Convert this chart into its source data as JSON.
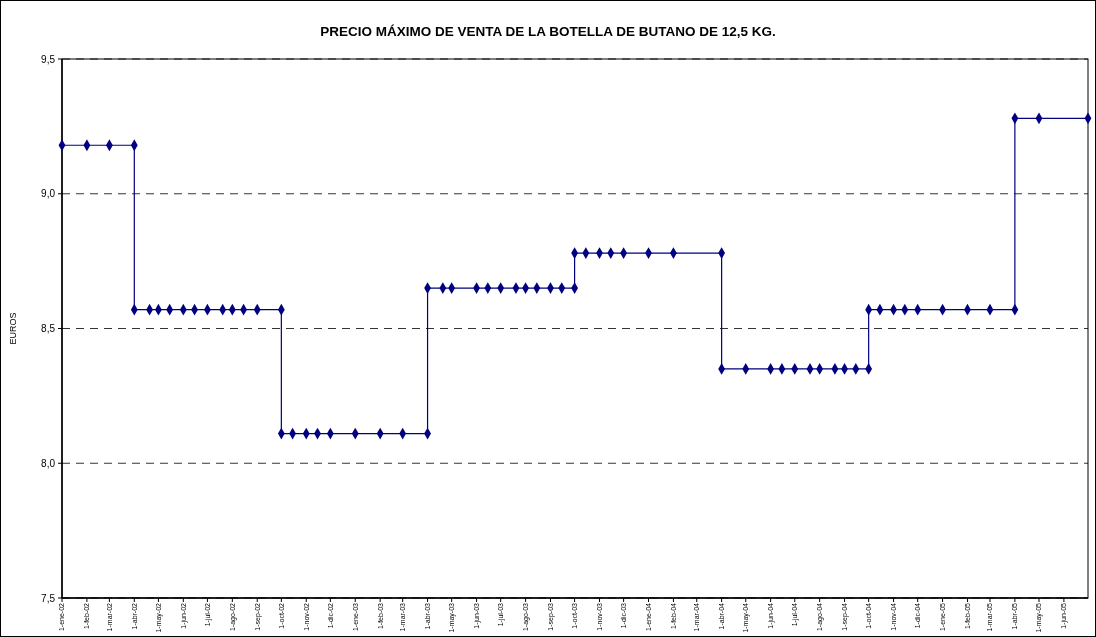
{
  "chart_data": {
    "type": "line",
    "title": "PRECIO MÁXIMO DE VENTA DE LA BOTELLA DE BUTANO DE 12,5 KG.",
    "ylabel": "EUROS",
    "x": [
      "2002-01-01",
      "2002-02-01",
      "2002-03-01",
      "2002-04-01",
      "2002-04-01",
      "2002-04-20",
      "2002-05-01",
      "2002-05-15",
      "2002-06-01",
      "2002-06-15",
      "2002-07-01",
      "2002-07-20",
      "2002-08-01",
      "2002-08-15",
      "2002-09-01",
      "2002-10-01",
      "2002-10-01",
      "2002-10-15",
      "2002-11-01",
      "2002-11-15",
      "2002-12-01",
      "2003-01-01",
      "2003-02-01",
      "2003-03-01",
      "2003-04-01",
      "2003-04-01",
      "2003-04-20",
      "2003-05-01",
      "2003-06-01",
      "2003-06-15",
      "2003-07-01",
      "2003-07-20",
      "2003-08-01",
      "2003-08-15",
      "2003-09-01",
      "2003-09-15",
      "2003-10-01",
      "2003-10-01",
      "2003-10-15",
      "2003-11-01",
      "2003-11-15",
      "2003-12-01",
      "2004-01-01",
      "2004-02-01",
      "2004-04-01",
      "2004-04-01",
      "2004-05-01",
      "2004-06-01",
      "2004-06-15",
      "2004-07-01",
      "2004-07-20",
      "2004-08-01",
      "2004-08-20",
      "2004-09-01",
      "2004-09-15",
      "2004-10-01",
      "2004-10-01",
      "2004-10-15",
      "2004-11-01",
      "2004-11-15",
      "2004-12-01",
      "2005-01-01",
      "2005-02-01",
      "2005-03-01",
      "2005-04-01",
      "2005-04-01",
      "2005-05-01",
      "2005-07-01"
    ],
    "series": [
      {
        "color": "#000080",
        "values": [
          9.18,
          9.18,
          9.18,
          9.18,
          8.57,
          8.57,
          8.57,
          8.57,
          8.57,
          8.57,
          8.57,
          8.57,
          8.57,
          8.57,
          8.57,
          8.57,
          8.11,
          8.11,
          8.11,
          8.11,
          8.11,
          8.11,
          8.11,
          8.11,
          8.11,
          8.65,
          8.65,
          8.65,
          8.65,
          8.65,
          8.65,
          8.65,
          8.65,
          8.65,
          8.65,
          8.65,
          8.65,
          8.78,
          8.78,
          8.78,
          8.78,
          8.78,
          8.78,
          8.78,
          8.78,
          8.35,
          8.35,
          8.35,
          8.35,
          8.35,
          8.35,
          8.35,
          8.35,
          8.35,
          8.35,
          8.35,
          8.57,
          8.57,
          8.57,
          8.57,
          8.57,
          8.57,
          8.57,
          8.57,
          8.57,
          9.28,
          9.28,
          9.28
        ]
      }
    ],
    "xlim": [
      "2002-01-01",
      "2005-07-01"
    ],
    "xticks": [
      {
        "value": "2002-01-01",
        "label": "1-ene-02"
      },
      {
        "value": "2002-02-01",
        "label": "1-feb-02"
      },
      {
        "value": "2002-03-01",
        "label": "1-mar-02"
      },
      {
        "value": "2002-04-01",
        "label": "1-abr-02"
      },
      {
        "value": "2002-05-01",
        "label": "1-may-02"
      },
      {
        "value": "2002-06-01",
        "label": "1-jun-02"
      },
      {
        "value": "2002-07-01",
        "label": "1-jul-02"
      },
      {
        "value": "2002-08-01",
        "label": "1-ago-02"
      },
      {
        "value": "2002-09-01",
        "label": "1-sep-02"
      },
      {
        "value": "2002-10-01",
        "label": "1-oct-02"
      },
      {
        "value": "2002-11-01",
        "label": "1-nov-02"
      },
      {
        "value": "2002-12-01",
        "label": "1-dic-02"
      },
      {
        "value": "2003-01-01",
        "label": "1-ene-03"
      },
      {
        "value": "2003-02-01",
        "label": "1-feb-03"
      },
      {
        "value": "2003-03-01",
        "label": "1-mar-03"
      },
      {
        "value": "2003-04-01",
        "label": "1-abr-03"
      },
      {
        "value": "2003-05-01",
        "label": "1-may-03"
      },
      {
        "value": "2003-06-01",
        "label": "1-jun-03"
      },
      {
        "value": "2003-07-01",
        "label": "1-jul-03"
      },
      {
        "value": "2003-08-01",
        "label": "1-ago-03"
      },
      {
        "value": "2003-09-01",
        "label": "1-sep-03"
      },
      {
        "value": "2003-10-01",
        "label": "1-oct-03"
      },
      {
        "value": "2003-11-01",
        "label": "1-nov-03"
      },
      {
        "value": "2003-12-01",
        "label": "1-dic-03"
      },
      {
        "value": "2004-01-01",
        "label": "1-ene-04"
      },
      {
        "value": "2004-02-01",
        "label": "1-feb-04"
      },
      {
        "value": "2004-03-01",
        "label": "1-mar-04"
      },
      {
        "value": "2004-04-01",
        "label": "1-abr-04"
      },
      {
        "value": "2004-05-01",
        "label": "1-may-04"
      },
      {
        "value": "2004-06-01",
        "label": "1-jun-04"
      },
      {
        "value": "2004-07-01",
        "label": "1-jul-04"
      },
      {
        "value": "2004-08-01",
        "label": "1-ago-04"
      },
      {
        "value": "2004-09-01",
        "label": "1-sep-04"
      },
      {
        "value": "2004-10-01",
        "label": "1-oct-04"
      },
      {
        "value": "2004-11-01",
        "label": "1-nov-04"
      },
      {
        "value": "2004-12-01",
        "label": "1-dic-04"
      },
      {
        "value": "2005-01-01",
        "label": "1-ene-05"
      },
      {
        "value": "2005-02-01",
        "label": "1-feb-05"
      },
      {
        "value": "2005-03-01",
        "label": "1-mar-05"
      },
      {
        "value": "2005-04-01",
        "label": "1-abr-05"
      },
      {
        "value": "2005-05-01",
        "label": "1-may-05"
      },
      {
        "value": "2005-06-01",
        "label": "1-jun-05"
      }
    ],
    "ylim": [
      7.5,
      9.5
    ],
    "yticks": [
      {
        "value": 7.5,
        "label": "7,5"
      },
      {
        "value": 8.0,
        "label": "8,0"
      },
      {
        "value": 8.5,
        "label": "8,5"
      },
      {
        "value": 9.0,
        "label": "9,0"
      },
      {
        "value": 9.5,
        "label": "9,5"
      }
    ],
    "grid": "y",
    "line_style": "solid",
    "marker": "diamond"
  }
}
